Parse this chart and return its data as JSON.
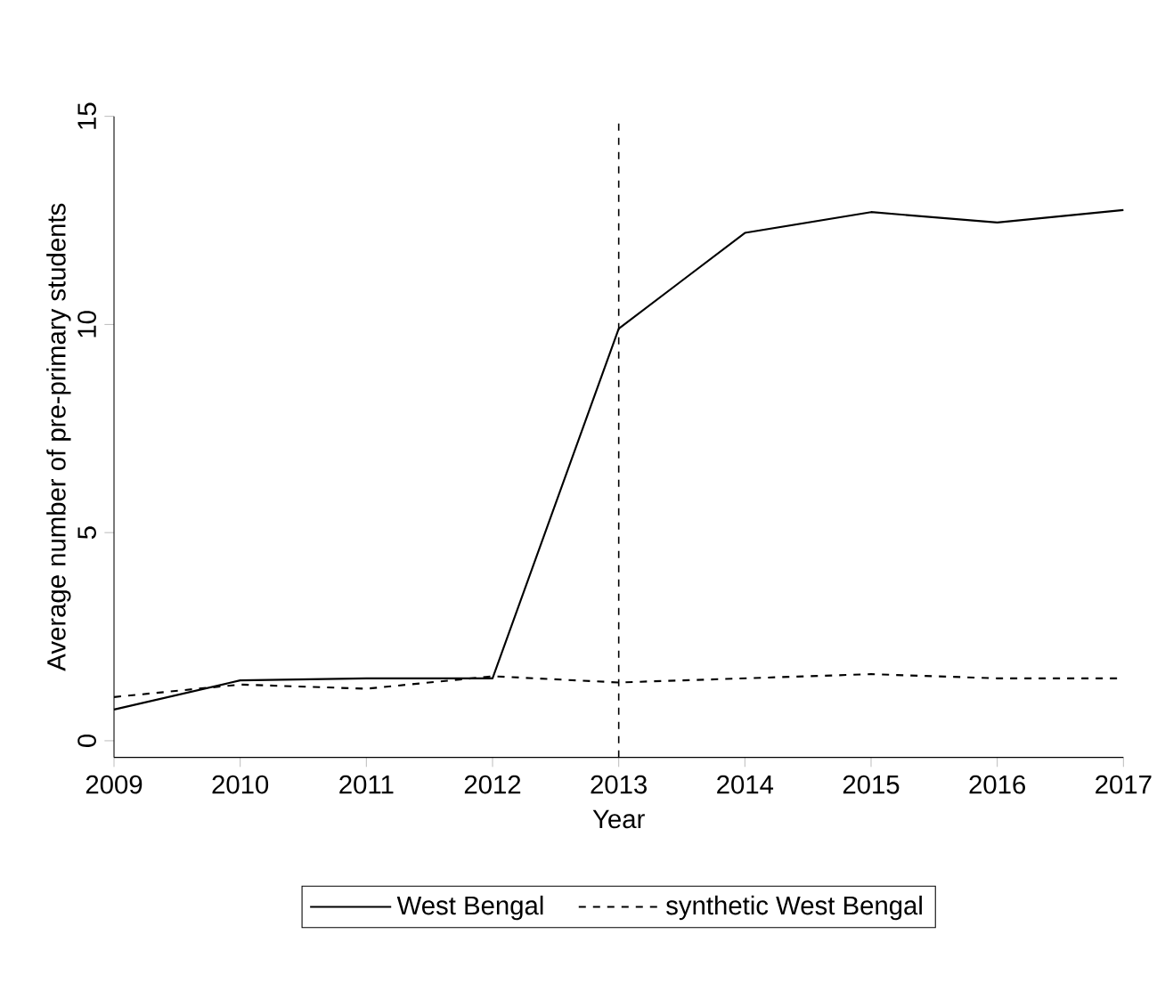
{
  "chart_data": {
    "type": "line",
    "xlabel": "Year",
    "ylabel": "Average number of pre-primary students",
    "x": [
      2009,
      2010,
      2011,
      2012,
      2013,
      2014,
      2015,
      2016,
      2017
    ],
    "series": [
      {
        "name": "West Bengal",
        "color": "#000000",
        "line_style": "solid",
        "values": [
          0.75,
          1.45,
          1.5,
          1.5,
          9.9,
          12.2,
          12.7,
          12.45,
          12.75
        ]
      },
      {
        "name": "synthetic West Bengal",
        "color": "#000000",
        "line_style": "dashed",
        "values": [
          1.05,
          1.35,
          1.25,
          1.55,
          1.4,
          1.5,
          1.6,
          1.5,
          1.5
        ]
      }
    ],
    "xlim": [
      2009,
      2017
    ],
    "ylim": [
      -0.4,
      15
    ],
    "xticks": [
      2009,
      2010,
      2011,
      2012,
      2013,
      2014,
      2015,
      2016,
      2017
    ],
    "yticks": [
      0,
      5,
      10,
      15
    ],
    "ref_lines": [
      {
        "axis": "x",
        "value": 2013,
        "line_style": "dashed",
        "color": "#000000"
      }
    ],
    "grid": false,
    "legend": "bottom",
    "marker": "none"
  }
}
